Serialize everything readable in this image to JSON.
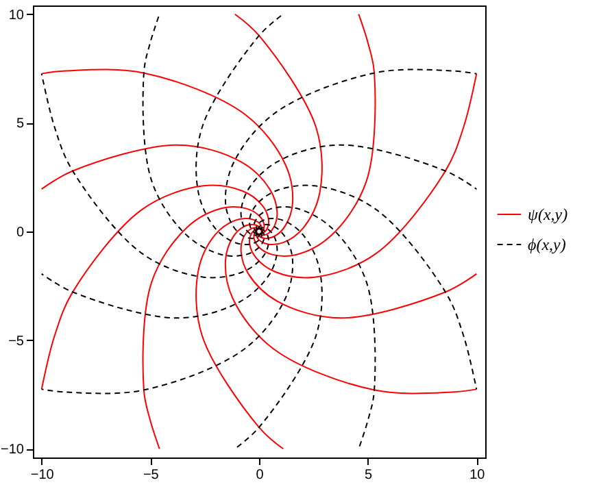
{
  "chart_data": {
    "type": "line",
    "xlim": [
      -10.4,
      10.4
    ],
    "ylim": [
      -10.4,
      10.4
    ],
    "xticks": [
      -10,
      -5,
      0,
      5,
      10
    ],
    "yticks": [
      -10,
      -5,
      0,
      5,
      10
    ],
    "legend": "right",
    "grid": false,
    "series": [
      {
        "name": "ψ(x,y)",
        "color": "#ff0000",
        "line_style": "solid",
        "x": [
          -0.07,
          -0.04,
          0.07,
          0.31,
          0.71,
          1.19,
          1.54,
          1.21,
          -0.69,
          -5.28,
          -8.89,
          -10
        ],
        "values": [
          -0.07,
          -0.16,
          -0.26,
          -0.32,
          -0.22,
          0.24,
          1.29,
          3.08,
          5.42,
          7.29,
          7.39,
          7.26
        ]
      },
      {
        "color": "#ff0000",
        "line_style": "solid",
        "x": [
          -0.01,
          0.06,
          0.21,
          0.44,
          0.7,
          0.83,
          0.49,
          -0.84,
          -3.74,
          -8.56,
          -10
        ],
        "values": [
          -0.1,
          -0.15,
          -0.17,
          -0.08,
          0.24,
          0.9,
          1.95,
          3.21,
          3.98,
          2.79,
          1.95
        ]
      },
      {
        "color": "#ff0000",
        "line_style": "solid",
        "x": [
          0.05,
          0.14,
          0.27,
          0.4,
          0.43,
          0.14,
          -0.75,
          -2.56,
          -5.37,
          -8.56,
          -9.4,
          -10
        ],
        "values": [
          -0.09,
          -0.09,
          -0.01,
          0.2,
          0.6,
          1.21,
          1.86,
          2.1,
          1.02,
          -2.77,
          -4.79,
          -7.26
        ]
      },
      {
        "color": "#ff0000",
        "line_style": "solid",
        "x": [
          0.09,
          0.16,
          0.23,
          0.21,
          -0.01,
          -0.6,
          -1.7,
          -3.31,
          -4.94,
          -5.3,
          -5.01,
          -4.58
        ],
        "values": [
          -0.04,
          0.01,
          0.15,
          0.4,
          0.74,
          1.06,
          1.07,
          0.19,
          -2.33,
          -7.27,
          -8.67,
          -10
        ]
      },
      {
        "color": "#ff0000",
        "line_style": "solid",
        "x": [
          0.1,
          0.13,
          0.1,
          -0.06,
          -0.44,
          -1.11,
          -2.01,
          -2.79,
          -2.62,
          -0.01,
          1.11
        ],
        "values": [
          0.02,
          0.11,
          0.26,
          0.44,
          0.59,
          0.51,
          -0.14,
          -1.79,
          -4.79,
          -9.0,
          -10
        ]
      },
      {
        "color": "#ff0000",
        "line_style": "solid",
        "x": [
          0.07,
          0.04,
          -0.07,
          -0.31,
          -0.71,
          -1.19,
          -1.54,
          -1.21,
          0.69,
          5.28,
          8.89,
          10
        ],
        "values": [
          0.07,
          0.16,
          0.26,
          0.32,
          0.22,
          -0.24,
          -1.29,
          -3.08,
          -5.42,
          -7.29,
          -7.39,
          -7.26
        ]
      },
      {
        "color": "#ff0000",
        "line_style": "solid",
        "x": [
          0.01,
          -0.06,
          -0.21,
          -0.44,
          -0.7,
          -0.83,
          -0.49,
          0.84,
          3.74,
          8.56,
          10
        ],
        "values": [
          0.1,
          0.15,
          0.17,
          0.08,
          -0.24,
          -0.9,
          -1.95,
          -3.21,
          -3.98,
          -2.79,
          -1.95
        ]
      },
      {
        "color": "#ff0000",
        "line_style": "solid",
        "x": [
          -0.05,
          -0.14,
          -0.27,
          -0.4,
          -0.43,
          -0.14,
          0.75,
          2.56,
          5.37,
          8.56,
          9.4,
          10
        ],
        "values": [
          0.09,
          0.09,
          0.01,
          -0.2,
          -0.6,
          -1.21,
          -1.86,
          -2.1,
          -1.02,
          2.77,
          4.79,
          7.26
        ]
      },
      {
        "color": "#ff0000",
        "line_style": "solid",
        "x": [
          -0.09,
          -0.16,
          -0.23,
          -0.21,
          0.01,
          0.6,
          1.7,
          3.31,
          4.94,
          5.3,
          5.01,
          4.58
        ],
        "values": [
          0.04,
          -0.01,
          -0.15,
          -0.4,
          -0.74,
          -1.06,
          -1.07,
          -0.19,
          2.33,
          7.27,
          8.67,
          10
        ]
      },
      {
        "color": "#ff0000",
        "line_style": "solid",
        "x": [
          -0.1,
          -0.13,
          -0.1,
          0.06,
          0.44,
          1.11,
          2.01,
          2.79,
          2.62,
          0.01,
          -1.11
        ],
        "values": [
          -0.02,
          -0.11,
          -0.26,
          -0.44,
          -0.59,
          -0.51,
          0.14,
          1.79,
          4.79,
          9.0,
          10
        ]
      },
      {
        "name": "ϕ(x,y)",
        "color": "#000000",
        "line_style": "dashed",
        "x": [
          -0.07,
          -0.04,
          0.07,
          0.31,
          0.71,
          1.19,
          1.54,
          1.21,
          -0.69,
          -5.28,
          -8.89,
          -10
        ],
        "values": [
          0.07,
          0.16,
          0.26,
          0.32,
          0.22,
          -0.24,
          -1.29,
          -3.08,
          -5.42,
          -7.29,
          -7.39,
          -7.26
        ]
      },
      {
        "color": "#000000",
        "line_style": "dashed",
        "x": [
          -0.01,
          0.06,
          0.21,
          0.44,
          0.7,
          0.83,
          0.49,
          -0.84,
          -3.74,
          -8.56,
          -10
        ],
        "values": [
          0.1,
          0.15,
          0.17,
          0.08,
          -0.24,
          -0.9,
          -1.95,
          -3.21,
          -3.98,
          -2.79,
          -1.95
        ]
      },
      {
        "color": "#000000",
        "line_style": "dashed",
        "x": [
          0.05,
          0.14,
          0.27,
          0.4,
          0.43,
          0.14,
          -0.75,
          -2.56,
          -5.37,
          -8.56,
          -9.4,
          -10
        ],
        "values": [
          0.09,
          0.09,
          0.01,
          -0.2,
          -0.6,
          -1.21,
          -1.86,
          -2.1,
          -1.02,
          2.77,
          4.79,
          7.26
        ]
      },
      {
        "color": "#000000",
        "line_style": "dashed",
        "x": [
          0.09,
          0.16,
          0.23,
          0.21,
          -0.01,
          -0.6,
          -1.7,
          -3.31,
          -4.94,
          -5.3,
          -5.01,
          -4.58
        ],
        "values": [
          0.04,
          -0.01,
          -0.15,
          -0.4,
          -0.74,
          -1.06,
          -1.07,
          -0.19,
          2.33,
          7.27,
          8.67,
          10
        ]
      },
      {
        "color": "#000000",
        "line_style": "dashed",
        "x": [
          0.1,
          0.13,
          0.1,
          -0.06,
          -0.44,
          -1.11,
          -2.01,
          -2.79,
          -2.62,
          -0.01,
          1.11
        ],
        "values": [
          -0.02,
          -0.11,
          -0.26,
          -0.44,
          -0.59,
          -0.51,
          0.14,
          1.79,
          4.79,
          9.0,
          10
        ]
      },
      {
        "color": "#000000",
        "line_style": "dashed",
        "x": [
          0.07,
          0.04,
          -0.07,
          -0.31,
          -0.71,
          -1.19,
          -1.54,
          -1.21,
          0.69,
          5.28,
          8.89,
          10
        ],
        "values": [
          -0.07,
          -0.16,
          -0.26,
          -0.32,
          -0.22,
          0.24,
          1.29,
          3.08,
          5.42,
          7.29,
          7.39,
          7.26
        ]
      },
      {
        "color": "#000000",
        "line_style": "dashed",
        "x": [
          0.01,
          -0.06,
          -0.21,
          -0.44,
          -0.7,
          -0.83,
          -0.49,
          0.84,
          3.74,
          8.56,
          10
        ],
        "values": [
          -0.1,
          -0.15,
          -0.17,
          -0.08,
          0.24,
          0.9,
          1.95,
          3.21,
          3.98,
          2.79,
          1.95
        ]
      },
      {
        "color": "#000000",
        "line_style": "dashed",
        "x": [
          -0.05,
          -0.14,
          -0.27,
          -0.4,
          -0.43,
          -0.14,
          0.75,
          2.56,
          5.37,
          8.56,
          9.4,
          10
        ],
        "values": [
          -0.09,
          -0.09,
          -0.01,
          0.2,
          0.6,
          1.21,
          1.86,
          2.1,
          1.02,
          -2.77,
          -4.79,
          -7.26
        ]
      },
      {
        "color": "#000000",
        "line_style": "dashed",
        "x": [
          -0.09,
          -0.16,
          -0.23,
          -0.21,
          0.01,
          0.6,
          1.7,
          3.31,
          4.94,
          5.3,
          5.01,
          4.58
        ],
        "values": [
          -0.04,
          0.01,
          0.15,
          0.4,
          0.74,
          1.06,
          1.07,
          0.19,
          -2.33,
          -7.27,
          -8.67,
          -10
        ]
      },
      {
        "color": "#000000",
        "line_style": "dashed",
        "x": [
          -0.1,
          -0.13,
          -0.1,
          0.06,
          0.44,
          1.11,
          2.01,
          2.79,
          2.62,
          0.01,
          -1.11
        ],
        "values": [
          0.02,
          0.11,
          0.26,
          0.44,
          0.59,
          0.51,
          -0.14,
          -1.79,
          -4.79,
          -9.0,
          -10
        ]
      }
    ]
  }
}
